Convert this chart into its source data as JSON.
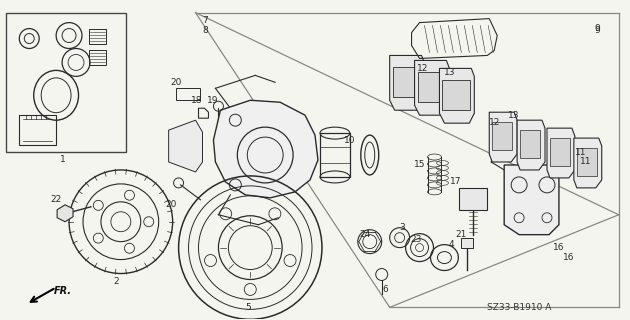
{
  "bg_color": "#f5f5f0",
  "line_color": "#2a2a2a",
  "part_number": "SZ33-B1910 A",
  "fr_label": "FR.",
  "fig_width": 6.3,
  "fig_height": 3.2,
  "dpi": 100,
  "shelf_color": "#888888",
  "inset_color": "#444444"
}
